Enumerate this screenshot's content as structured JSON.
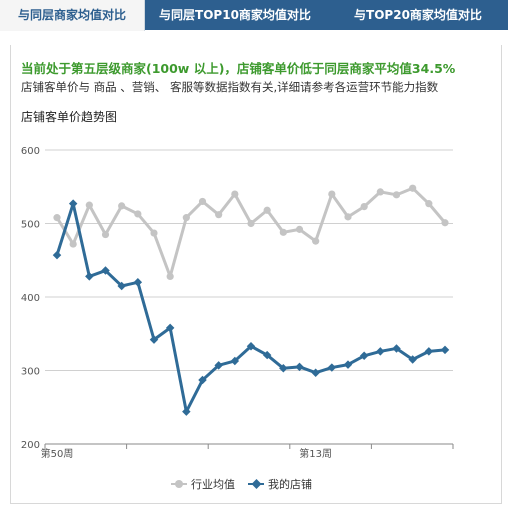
{
  "tabs": [
    {
      "label": "与同层商家均值对比",
      "active": true
    },
    {
      "label": "与同层TOP10商家均值对比",
      "active": false
    },
    {
      "label": "与TOP20商家均值对比",
      "active": false
    }
  ],
  "headline": "当前处于第五层级商家(100w 以上)，店铺客单价低于同层商家平均值34.5%",
  "subline": "店铺客单价与 商品 、营销、 客服等数据指数有关,详细请参考各运营环节能力指数",
  "chart_title": "店铺客单价趋势图",
  "colors": {
    "industry": "#c4c4c4",
    "mine": "#2f6b97",
    "tab_bg": "#2d5f8f",
    "headline": "#3d9a2e"
  },
  "chart_data": {
    "type": "line",
    "ylim": [
      200,
      600
    ],
    "yticks": [
      200,
      300,
      400,
      500,
      600
    ],
    "x_count": 25,
    "xtick_labels": [
      {
        "index": 0,
        "label": "第50周"
      },
      {
        "index": 16,
        "label": "第13周"
      }
    ],
    "legend_position": "bottom-center",
    "grid": true,
    "series": [
      {
        "name": "行业均值",
        "values": [
          508,
          472,
          525,
          485,
          524,
          513,
          487,
          428,
          508,
          530,
          512,
          540,
          500,
          518,
          488,
          492,
          476,
          540,
          509,
          523,
          543,
          539,
          548,
          527,
          501
        ]
      },
      {
        "name": "我的店铺",
        "values": [
          457,
          527,
          428,
          436,
          415,
          420,
          342,
          358,
          244,
          287,
          307,
          313,
          333,
          321,
          303,
          305,
          297,
          304,
          308,
          320,
          326,
          330,
          315,
          326,
          328
        ]
      }
    ]
  }
}
